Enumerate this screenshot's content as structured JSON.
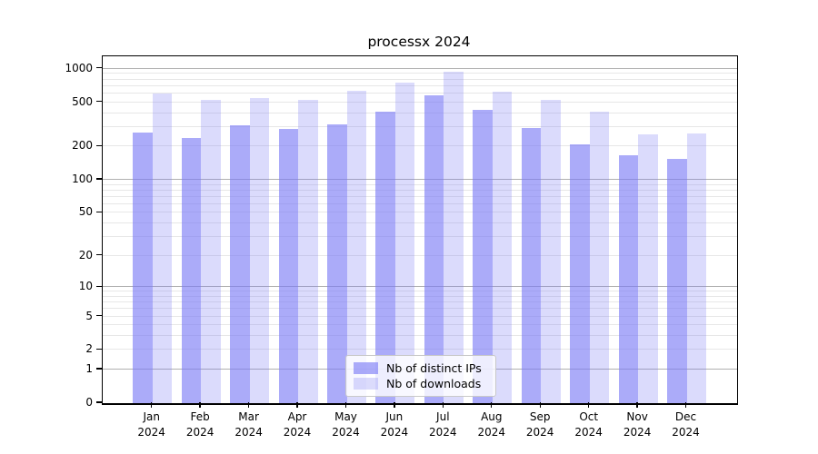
{
  "title": "processx 2024",
  "legend": {
    "items": [
      {
        "label": "Nb of distinct IPs"
      },
      {
        "label": "Nb of downloads"
      }
    ]
  },
  "chart_data": {
    "type": "bar",
    "title": "processx 2024",
    "categories": [
      "Jan 2024",
      "Feb 2024",
      "Mar 2024",
      "Apr 2024",
      "May 2024",
      "Jun 2024",
      "Jul 2024",
      "Aug 2024",
      "Sep 2024",
      "Oct 2024",
      "Nov 2024",
      "Dec 2024"
    ],
    "series": [
      {
        "name": "Nb of distinct IPs",
        "color": "rgba(122,122,245,0.63)",
        "values": [
          268,
          237,
          308,
          290,
          318,
          413,
          580,
          430,
          295,
          211,
          168,
          155
        ]
      },
      {
        "name": "Nb of downloads",
        "color": "rgba(122,122,245,0.27)",
        "values": [
          595,
          525,
          550,
          528,
          640,
          745,
          935,
          626,
          526,
          415,
          259,
          262
        ]
      }
    ],
    "xlabel": "",
    "ylabel": "",
    "yscale": "log1p",
    "y_ticks": [
      0,
      1,
      2,
      5,
      10,
      20,
      50,
      100,
      200,
      500,
      1000
    ],
    "ylim": [
      0,
      1295
    ],
    "grid": "on",
    "legend_position": "lower center inside",
    "style": {
      "major_grid_color": "#b0b0b0",
      "minor_grid_color": "#e7e7e7",
      "spine_color": "#000000",
      "background": "#ffffff"
    }
  }
}
